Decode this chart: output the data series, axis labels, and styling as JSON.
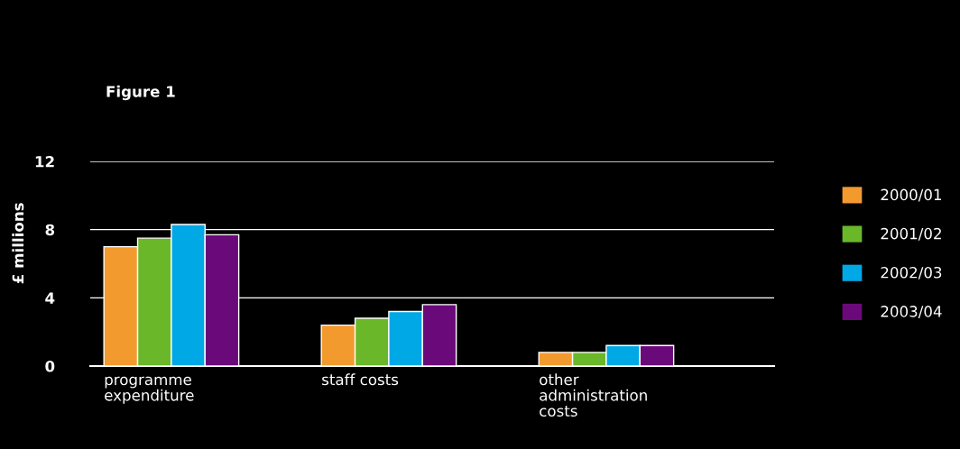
{
  "chart_data": {
    "type": "bar",
    "title": "Figure 1",
    "ylabel": "£ millions",
    "categories": [
      "programme\nexpenditure",
      "staff costs",
      "other\nadministration\ncosts"
    ],
    "series": [
      {
        "name": "2000/01",
        "color": "#f39a2e",
        "values": [
          7.0,
          2.4,
          0.8
        ]
      },
      {
        "name": "2001/02",
        "color": "#6ab82a",
        "values": [
          7.5,
          2.8,
          0.8
        ]
      },
      {
        "name": "2002/03",
        "color": "#00a8e6",
        "values": [
          8.3,
          3.2,
          1.2
        ]
      },
      {
        "name": "2003/04",
        "color": "#6a0a7a",
        "values": [
          7.7,
          3.6,
          1.2
        ]
      }
    ],
    "ylim": [
      0,
      12
    ],
    "yticks": [
      0,
      4,
      8,
      12
    ],
    "grid": "y",
    "legend": "right"
  }
}
